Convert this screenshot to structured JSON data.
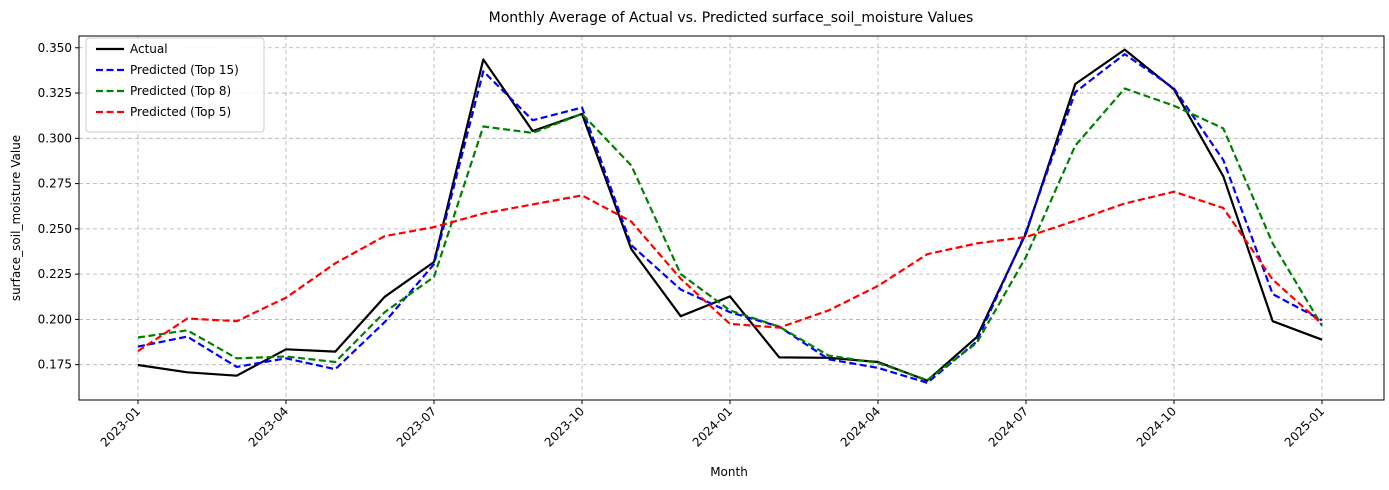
{
  "chart_data": {
    "type": "line",
    "title": "Monthly Average of Actual vs. Predicted surface_soil_moisture Values",
    "xlabel": "Month",
    "ylabel": "surface_soil_moisture Value",
    "x": [
      "2023-01",
      "2023-02",
      "2023-03",
      "2023-04",
      "2023-05",
      "2023-06",
      "2023-07",
      "2023-08",
      "2023-09",
      "2023-10",
      "2023-11",
      "2023-12",
      "2024-01",
      "2024-02",
      "2024-03",
      "2024-04",
      "2024-05",
      "2024-06",
      "2024-07",
      "2024-08",
      "2024-09",
      "2024-10",
      "2024-11",
      "2024-12",
      "2025-01"
    ],
    "x_ticks": [
      "2023-01",
      "2023-04",
      "2023-07",
      "2023-10",
      "2024-01",
      "2024-04",
      "2024-07",
      "2024-10",
      "2025-01"
    ],
    "y_ticks": [
      "0.175",
      "0.200",
      "0.225",
      "0.250",
      "0.275",
      "0.300",
      "0.325",
      "0.350"
    ],
    "ylim": [
      0.1555,
      0.3565
    ],
    "grid": true,
    "legend_position": "upper-left",
    "series": [
      {
        "name": "Actual",
        "color": "#000000",
        "style": "solid",
        "values": [
          0.1748,
          0.1708,
          0.1689,
          0.1835,
          0.1822,
          0.2125,
          0.2317,
          0.3435,
          0.304,
          0.3135,
          0.2388,
          0.2018,
          0.2127,
          0.179,
          0.1788,
          0.1765,
          0.1662,
          0.1902,
          0.2475,
          0.33,
          0.349,
          0.327,
          0.279,
          0.199,
          0.1888
        ]
      },
      {
        "name": "Predicted (Top 15)",
        "color": "#0000ff",
        "style": "dashed",
        "values": [
          0.185,
          0.1905,
          0.1738,
          0.1785,
          0.1725,
          0.1985,
          0.2305,
          0.337,
          0.31,
          0.317,
          0.241,
          0.2165,
          0.204,
          0.196,
          0.178,
          0.1732,
          0.165,
          0.1878,
          0.2485,
          0.3255,
          0.3465,
          0.3275,
          0.288,
          0.214,
          0.1995
        ]
      },
      {
        "name": "Predicted (Top 8)",
        "color": "#008000",
        "style": "dashed",
        "values": [
          0.19,
          0.194,
          0.1785,
          0.1795,
          0.1765,
          0.204,
          0.2235,
          0.3065,
          0.303,
          0.3135,
          0.285,
          0.225,
          0.205,
          0.196,
          0.18,
          0.176,
          0.1665,
          0.187,
          0.2345,
          0.296,
          0.3275,
          0.318,
          0.3055,
          0.242,
          0.1965
        ]
      },
      {
        "name": "Predicted (Top 5)",
        "color": "#ff0000",
        "style": "dashed",
        "values": [
          0.1825,
          0.2005,
          0.199,
          0.212,
          0.231,
          0.246,
          0.251,
          0.2585,
          0.2635,
          0.2685,
          0.254,
          0.2225,
          0.1975,
          0.1955,
          0.205,
          0.2185,
          0.236,
          0.242,
          0.2455,
          0.2545,
          0.264,
          0.2705,
          0.2615,
          0.222,
          0.1975
        ]
      }
    ]
  }
}
